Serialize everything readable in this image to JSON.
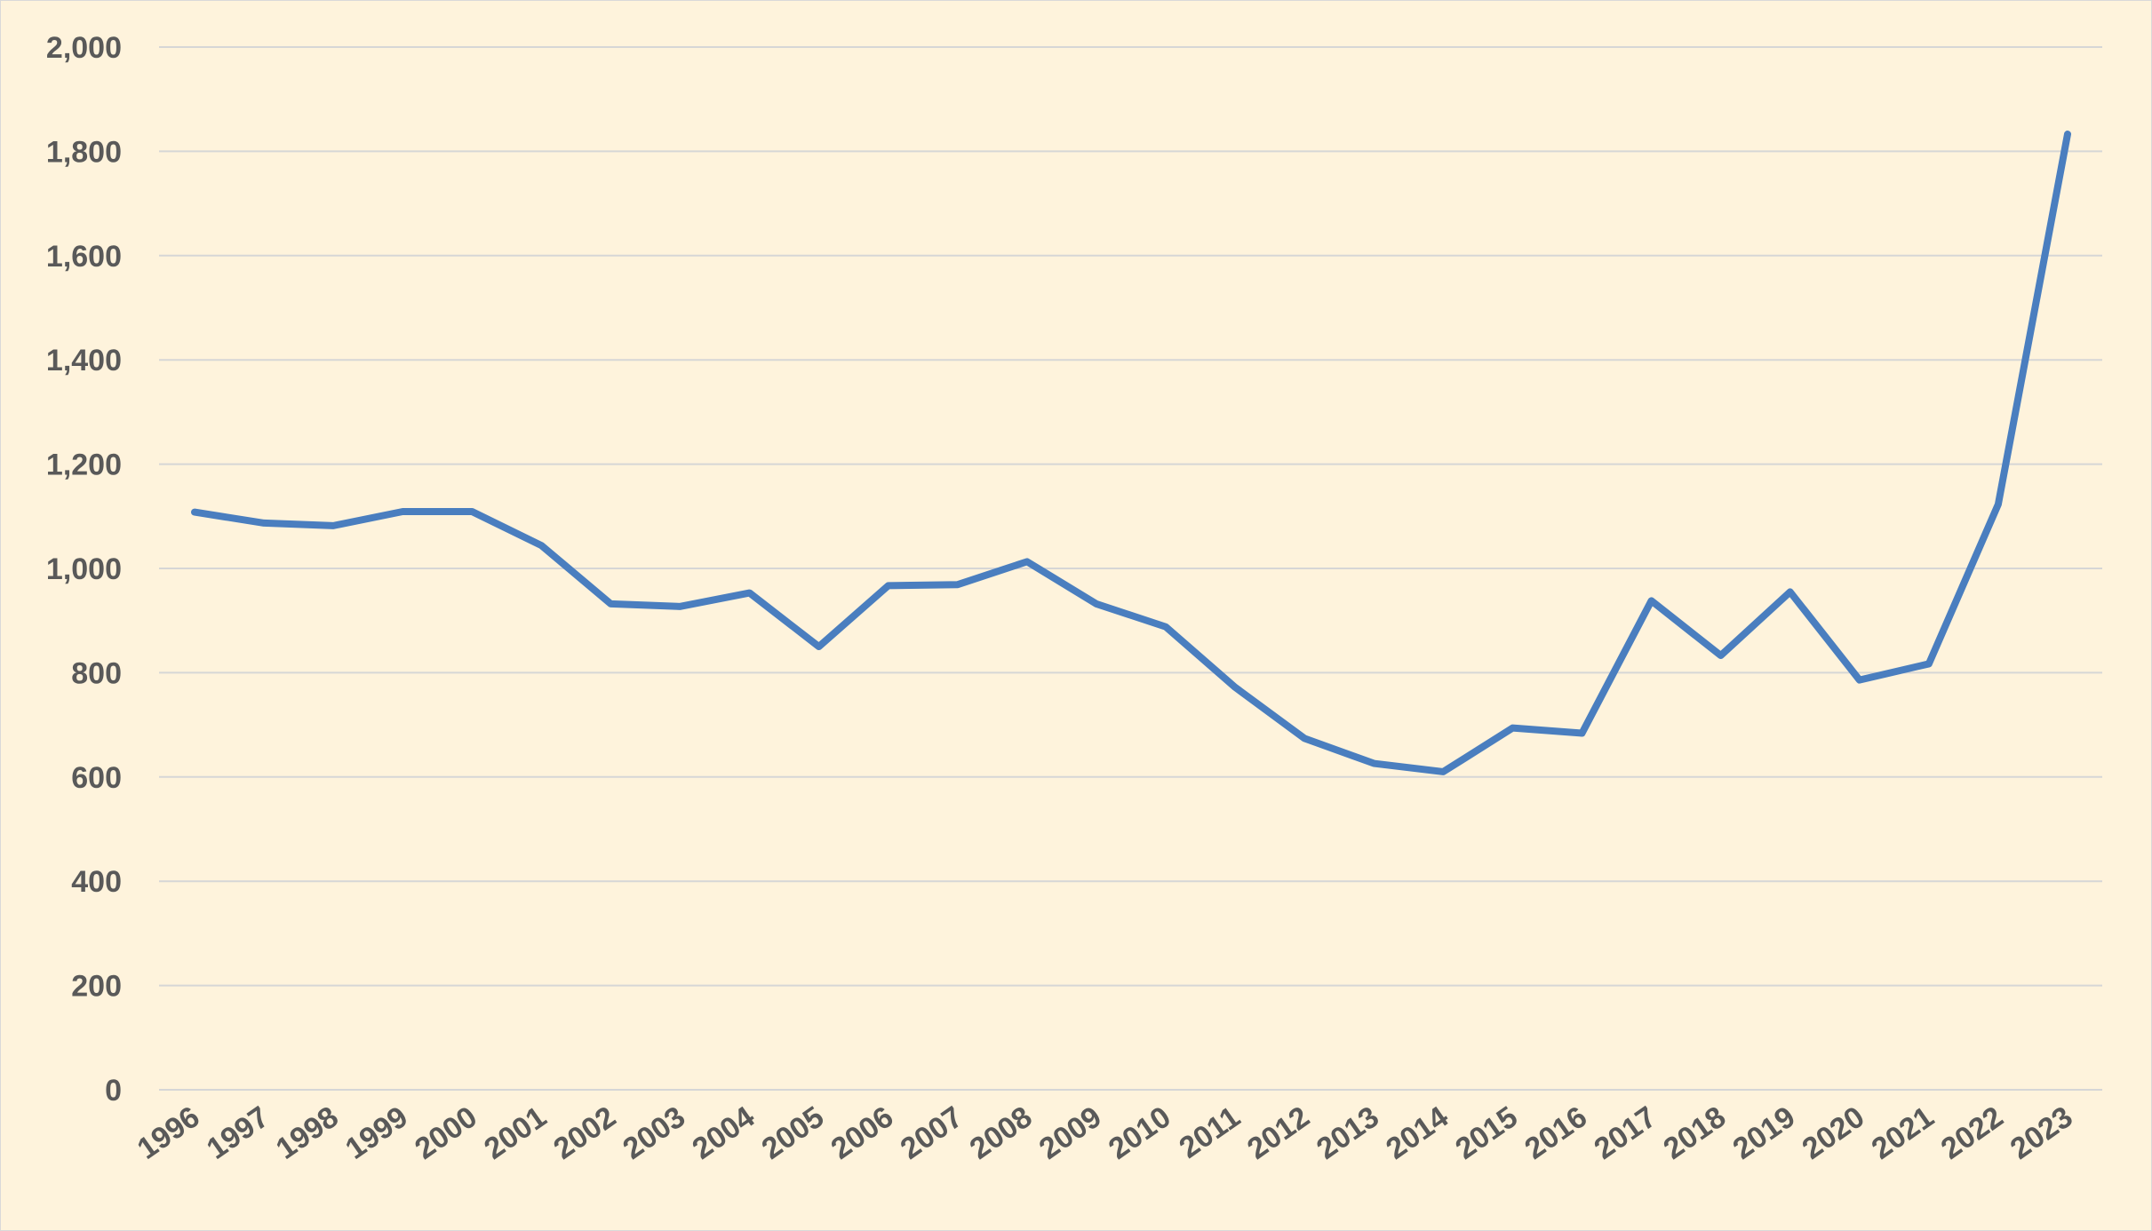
{
  "chart_data": {
    "type": "line",
    "title": "",
    "xlabel": "",
    "ylabel": "",
    "ylim": [
      0,
      2000
    ],
    "y_ticks": [
      0,
      200,
      400,
      600,
      800,
      1000,
      1200,
      1400,
      1600,
      1800,
      2000
    ],
    "y_tick_labels": [
      "0",
      "200",
      "400",
      "600",
      "800",
      "1,000",
      "1,200",
      "1,400",
      "1,600",
      "1,800",
      "2,000"
    ],
    "grid": "horizontal",
    "legend": "none",
    "categories": [
      "1996",
      "1997",
      "1998",
      "1999",
      "2000",
      "2001",
      "2002",
      "2003",
      "2004",
      "2005",
      "2006",
      "2007",
      "2008",
      "2009",
      "2010",
      "2011",
      "2012",
      "2013",
      "2014",
      "2015",
      "2016",
      "2017",
      "2018",
      "2019",
      "2020",
      "2021",
      "2022",
      "2023"
    ],
    "series": [
      {
        "values": [
          1108,
          1087,
          1082,
          1109,
          1109,
          1044,
          932,
          927,
          953,
          850,
          967,
          969,
          1013,
          932,
          888,
          772,
          674,
          626,
          610,
          694,
          684,
          938,
          833,
          955,
          786,
          817,
          1123,
          1833
        ],
        "color": "#4a7ebf"
      }
    ],
    "colors": {
      "background": "#fef3dc",
      "grid": "#d6d6d6",
      "line": "#4a7ebf",
      "text": "#595959"
    }
  }
}
